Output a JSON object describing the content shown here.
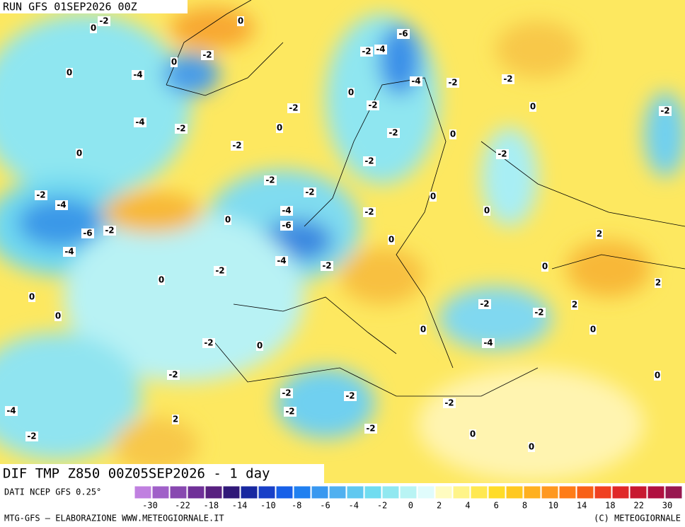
{
  "header": {
    "run": "RUN GFS 01SEP2026 00Z"
  },
  "title": "DIF TMP Z850 00Z05SEP2026 - 1 day",
  "legend": {
    "source": "DATI NCEP GFS 0.25°",
    "ticks": [
      -30,
      -22,
      -18,
      -14,
      -10,
      -8,
      -6,
      -4,
      -2,
      0,
      2,
      4,
      6,
      8,
      10,
      14,
      18,
      22,
      30
    ],
    "colors": [
      "#c080e0",
      "#a060c8",
      "#8848b0",
      "#703098",
      "#582080",
      "#301878",
      "#1828a0",
      "#1840c8",
      "#1860e8",
      "#2080f0",
      "#3898f0",
      "#50b0f0",
      "#60c8f0",
      "#70dcf0",
      "#90e8f0",
      "#b8f4f4",
      "#e0fcfc",
      "#fffcc0",
      "#fff488",
      "#ffe850",
      "#ffdc28",
      "#ffc820",
      "#ffb020",
      "#ff9820",
      "#ff7c18",
      "#f86018",
      "#f04020",
      "#e02828",
      "#c81830",
      "#b01040",
      "#981850"
    ]
  },
  "map_labels": [
    -2,
    0,
    0,
    -6,
    -2,
    -4,
    -2,
    0,
    -4,
    -4,
    -2,
    -2,
    0,
    0,
    -2,
    -2,
    0,
    -2,
    -4,
    -2,
    0,
    -2,
    0,
    -2,
    0,
    -2,
    -2,
    -2,
    -2,
    -2,
    0,
    -4,
    -4,
    -2,
    0,
    0,
    -2,
    -6,
    -6,
    2,
    0,
    -4,
    -4,
    -2,
    -2,
    0,
    0,
    2,
    0,
    -2,
    -2,
    2,
    0,
    0,
    0,
    -2,
    -4,
    0,
    -2,
    0,
    -2,
    -2,
    -2,
    -4,
    -2,
    2,
    -2,
    -2,
    0,
    0
  ],
  "footer": {
    "left": "MTG-GFS – ELABORAZIONE WWW.METEOGIORNALE.IT",
    "right": "(C) METEOGIORNALE"
  }
}
